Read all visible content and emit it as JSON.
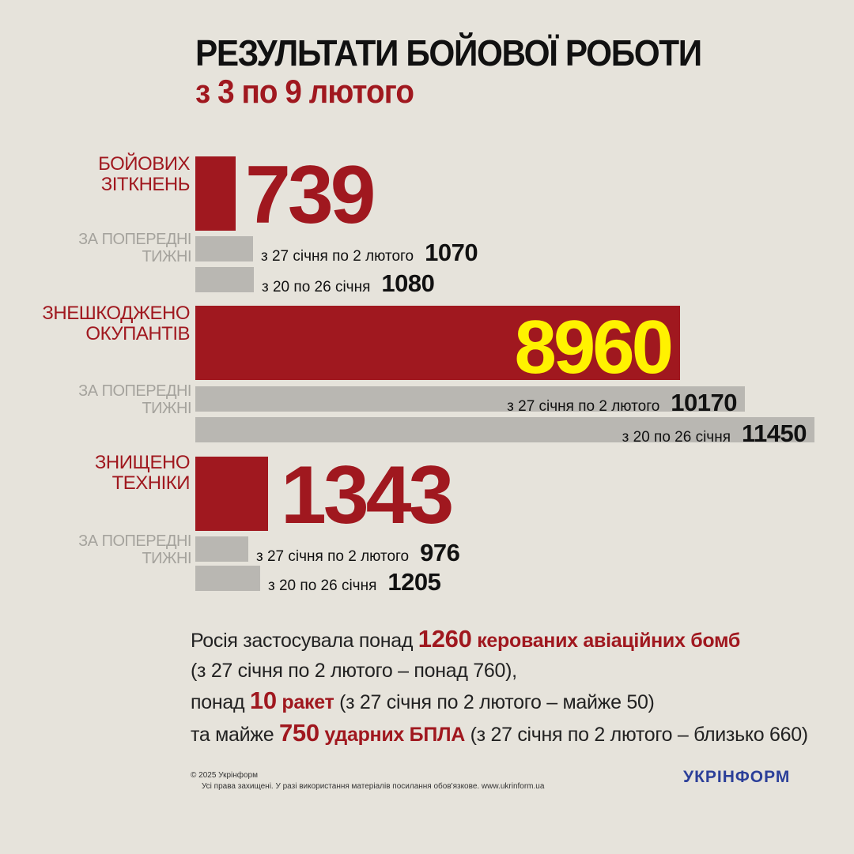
{
  "title": "РЕЗУЛЬТАТИ БОЙОВОЇ РОБОТИ",
  "subtitle": "з 3 по 9 лютого",
  "prev_weeks_label": "ЗА ПОПЕРЕДНІ\nТИЖНІ",
  "colors": {
    "accent": "#a0181f",
    "grey": "#b9b7b2",
    "highlight": "#fff200",
    "background": "#e6e3db",
    "logo": "#2b3f99"
  },
  "chart_data": [
    {
      "type": "bar",
      "title": "БОЙОВИХ\nЗІТКНЕНЬ",
      "series": [
        {
          "name": "з 3 по 9 лютого",
          "value": 739,
          "display": "739"
        },
        {
          "name": "з 27 січня по 2 лютого",
          "value": 1070,
          "display": "1070"
        },
        {
          "name": "з 20  по 26 січня",
          "value": 1080,
          "display": "1080"
        }
      ]
    },
    {
      "type": "bar",
      "title": "ЗНЕШКОДЖЕНО\nОКУПАНТІВ",
      "series": [
        {
          "name": "з 3 по 9 лютого",
          "value": 8960,
          "display": "8960"
        },
        {
          "name": "з 27 січня по 2 лютого",
          "value": 10170,
          "display": "10170"
        },
        {
          "name": "з 20  по 26 січня",
          "value": 11450,
          "display": "11450"
        }
      ]
    },
    {
      "type": "bar",
      "title": "ЗНИЩЕНО\nТЕХНІКИ",
      "series": [
        {
          "name": "з 3 по 9 лютого",
          "value": 1343,
          "display": "1343"
        },
        {
          "name": "з 27 січня по 2 лютого",
          "value": 976,
          "display": "976"
        },
        {
          "name": "з 20  по 26 січня",
          "value": 1205,
          "display": "1205"
        }
      ]
    }
  ],
  "summary": {
    "line1_pre": "Росія застосувала понад ",
    "line1_num": "1260",
    "line1_hl": " керованих авіаційних бомб",
    "line2": "(з 27 січня по 2 лютого – понад 760),",
    "line3_pre": "понад ",
    "line3_num": "10",
    "line3_hl": " ракет",
    "line3_post": " (з 27 січня по 2 лютого – майже 50)",
    "line4_pre": "та майже ",
    "line4_num": "750",
    "line4_hl": " ударних БПЛА",
    "line4_post": " (з 27 січня по 2 лютого – близько 660)"
  },
  "footer": {
    "copyright": "© 2025 Укрінформ",
    "rights": "Усі права захищені. У разі використання матеріалів посилання обов'язкове. www.ukrinform.ua",
    "logo": "УКРІНФОРМ"
  }
}
